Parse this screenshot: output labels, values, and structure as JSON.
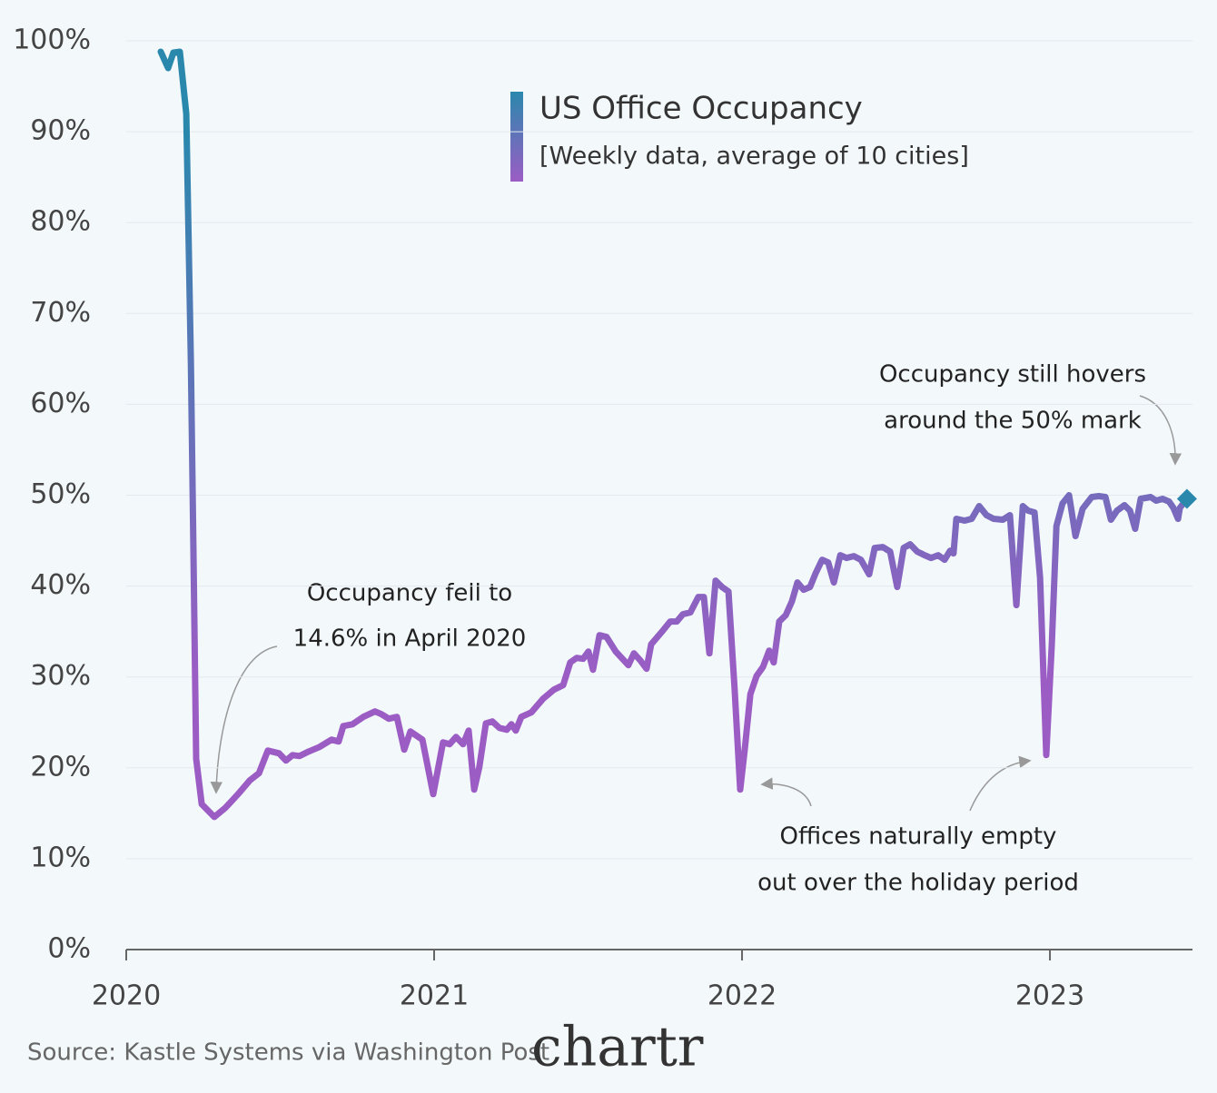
{
  "chart_data": {
    "type": "line",
    "title": "US Office Occupancy",
    "subtitle": "[Weekly data, average of 10 cities]",
    "source": "Source: Kastle Systems via Washington Post",
    "logo": "chartr",
    "xlim": [
      2020,
      2023.463
    ],
    "xticks": [
      2020,
      2021,
      2022,
      2023
    ],
    "ylim": [
      0,
      100
    ],
    "yticks": [
      {
        "value": 0,
        "label": "0%"
      },
      {
        "value": 10,
        "label": "10%"
      },
      {
        "value": 20,
        "label": "20%"
      },
      {
        "value": 30,
        "label": "30%"
      },
      {
        "value": 40,
        "label": "40%"
      },
      {
        "value": 50,
        "label": "50%"
      },
      {
        "value": 60,
        "label": "60%"
      },
      {
        "value": 70,
        "label": "70%"
      },
      {
        "value": 80,
        "label": "80%"
      },
      {
        "value": 90,
        "label": "90%"
      },
      {
        "value": 100,
        "label": "100%"
      }
    ],
    "grid": true,
    "colors": [
      "#2a88ad",
      "#9b5dc4"
    ],
    "annotations": [
      {
        "lines": [
          "Occupancy fell to",
          "14.6% in April 2020"
        ]
      },
      {
        "lines": [
          "Occupancy still hovers",
          "around the 50% mark"
        ]
      },
      {
        "lines": [
          "Offices naturally empty",
          "out over the holiday period"
        ]
      }
    ],
    "series": [
      {
        "name": "US Office Occupancy",
        "x": [
          2020.112,
          2020.136,
          2020.153,
          2020.174,
          2020.195,
          2020.21,
          2020.218,
          2020.227,
          2020.245,
          2020.286,
          2020.322,
          2020.363,
          2020.401,
          2020.431,
          2020.46,
          2020.496,
          2020.519,
          2020.54,
          2020.563,
          2020.593,
          2020.628,
          2020.667,
          2020.69,
          2020.705,
          2020.735,
          2020.77,
          2020.808,
          2020.829,
          2020.853,
          2020.879,
          2020.903,
          2020.923,
          2020.962,
          2020.997,
          2021.029,
          2021.05,
          2021.071,
          2021.094,
          2021.112,
          2021.13,
          2021.147,
          2021.168,
          2021.189,
          2021.212,
          2021.236,
          2021.251,
          2021.265,
          2021.283,
          2021.316,
          2021.354,
          2021.389,
          2021.419,
          2021.442,
          2021.463,
          2021.484,
          2021.501,
          2021.516,
          2021.537,
          2021.56,
          2021.59,
          2021.631,
          2021.649,
          2021.67,
          2021.69,
          2021.705,
          2021.743,
          2021.767,
          2021.788,
          2021.808,
          2021.832,
          2021.858,
          2021.876,
          2021.894,
          2021.914,
          2021.935,
          2021.956,
          2021.976,
          2021.994,
          2022.009,
          2022.027,
          2022.047,
          2022.068,
          2022.088,
          2022.103,
          2022.121,
          2022.142,
          2022.162,
          2022.18,
          2022.2,
          2022.221,
          2022.239,
          2022.26,
          2022.28,
          2022.298,
          2022.319,
          2022.339,
          2022.363,
          2022.386,
          2022.413,
          2022.431,
          2022.457,
          2022.481,
          2022.504,
          2022.525,
          2022.546,
          2022.569,
          2022.593,
          2022.614,
          2022.637,
          2022.658,
          2022.676,
          2022.687,
          2022.696,
          2022.723,
          2022.746,
          2022.77,
          2022.794,
          2022.817,
          2022.847,
          2022.87,
          2022.891,
          2022.912,
          2022.929,
          2022.95,
          2022.968,
          2022.988,
          2023.006,
          2023.021,
          2023.041,
          2023.062,
          2023.083,
          2023.106,
          2023.136,
          2023.159,
          2023.18,
          2023.198,
          2023.218,
          2023.242,
          2023.26,
          2023.277,
          2023.295,
          2023.327,
          2023.345,
          2023.366,
          2023.387,
          2023.401,
          2023.416,
          2023.422,
          2023.445
        ],
        "values": [
          98.8,
          97,
          98.7,
          98.8,
          92,
          64.5,
          44.5,
          21,
          16,
          14.6,
          15.6,
          17.1,
          18.6,
          19.4,
          21.9,
          21.6,
          20.8,
          21.4,
          21.3,
          21.8,
          22.3,
          23.1,
          22.9,
          24.6,
          24.8,
          25.6,
          26.2,
          25.9,
          25.4,
          25.6,
          22,
          24,
          23.1,
          17.1,
          22.8,
          22.6,
          23.4,
          22.6,
          24.1,
          17.6,
          20.1,
          24.9,
          25.1,
          24.4,
          24.2,
          24.8,
          24.1,
          25.6,
          26.1,
          27.6,
          28.6,
          29.1,
          31.6,
          32.1,
          32,
          32.8,
          30.8,
          34.6,
          34.4,
          32.8,
          31.3,
          32.6,
          31.8,
          30.9,
          33.6,
          35.1,
          36.1,
          36.1,
          36.9,
          37.1,
          38.8,
          38.8,
          32.6,
          40.6,
          39.9,
          39.4,
          28.6,
          17.6,
          22.1,
          28.1,
          30.1,
          31.1,
          32.9,
          31.6,
          36.1,
          36.8,
          38.3,
          40.4,
          39.6,
          39.9,
          41.4,
          42.9,
          42.6,
          40.4,
          43.4,
          43.1,
          43.3,
          42.9,
          41.3,
          44.2,
          44.3,
          43.8,
          39.9,
          44.2,
          44.6,
          43.8,
          43.4,
          43.1,
          43.4,
          42.9,
          43.9,
          43.6,
          47.4,
          47.2,
          47.4,
          48.8,
          47.8,
          47.4,
          47.3,
          47.8,
          37.9,
          48.8,
          48.3,
          48.1,
          40.9,
          21.4,
          33.6,
          46.6,
          49.1,
          50,
          45.5,
          48.5,
          49.8,
          49.9,
          49.8,
          47.3,
          48.3,
          48.9,
          48.3,
          46.3,
          49.6,
          49.8,
          49.4,
          49.6,
          49.3,
          48.6,
          47.4,
          48.6,
          49.6
        ]
      }
    ]
  }
}
